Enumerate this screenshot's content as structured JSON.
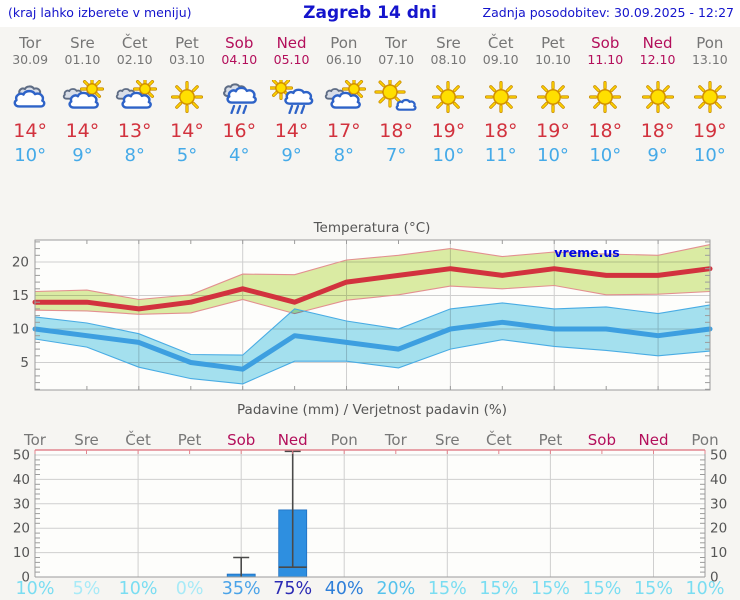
{
  "header": {
    "left_note": "(kraj lahko izberete v meniju)",
    "title": "Zagreb 14 dni",
    "updated": "Zadnja posodobitev: 30.09.2025 - 12:27"
  },
  "colors": {
    "header_blue": "#1414cc",
    "weekday_gray": "#757575",
    "weekend_crimson": "#b30f5b",
    "high_temp_red": "#d2323e",
    "low_temp_blue": "#45aae8",
    "max_band_fill": "#dceda6",
    "max_band_edge": "#e39090",
    "min_band_fill": "#a5e2f2",
    "min_band_edge": "#49ace4",
    "bar_blue": "#2e8fe0",
    "grid": "#cfcfcf",
    "frame": "#9c9c9c",
    "axis_text": "#555555",
    "precip_top_border_pink": "#e2858f"
  },
  "forecast_days": [
    {
      "day": "Tor",
      "date": "30.09",
      "weekend": false,
      "icon": "cloudy",
      "high": "14°",
      "low": "10°"
    },
    {
      "day": "Sre",
      "date": "01.10",
      "weekend": false,
      "icon": "sun-cloud",
      "high": "14°",
      "low": "9°"
    },
    {
      "day": "Čet",
      "date": "02.10",
      "weekend": false,
      "icon": "sun-cloud",
      "high": "13°",
      "low": "8°"
    },
    {
      "day": "Pet",
      "date": "03.10",
      "weekend": false,
      "icon": "sunny",
      "high": "14°",
      "low": "5°"
    },
    {
      "day": "Sob",
      "date": "04.10",
      "weekend": true,
      "icon": "rain",
      "high": "16°",
      "low": "4°"
    },
    {
      "day": "Ned",
      "date": "05.10",
      "weekend": true,
      "icon": "sun-rain",
      "high": "14°",
      "low": "9°"
    },
    {
      "day": "Pon",
      "date": "06.10",
      "weekend": false,
      "icon": "sun-cloud",
      "high": "17°",
      "low": "8°"
    },
    {
      "day": "Tor",
      "date": "07.10",
      "weekend": false,
      "icon": "mostly-sunny",
      "high": "18°",
      "low": "7°"
    },
    {
      "day": "Sre",
      "date": "08.10",
      "weekend": false,
      "icon": "sunny",
      "high": "19°",
      "low": "10°"
    },
    {
      "day": "Čet",
      "date": "09.10",
      "weekend": false,
      "icon": "sunny",
      "high": "18°",
      "low": "11°"
    },
    {
      "day": "Pet",
      "date": "10.10",
      "weekend": false,
      "icon": "sunny",
      "high": "19°",
      "low": "10°"
    },
    {
      "day": "Sob",
      "date": "11.10",
      "weekend": true,
      "icon": "sunny",
      "high": "18°",
      "low": "10°"
    },
    {
      "day": "Ned",
      "date": "12.10",
      "weekend": true,
      "icon": "sunny",
      "high": "18°",
      "low": "9°"
    },
    {
      "day": "Pon",
      "date": "13.10",
      "weekend": false,
      "icon": "sunny",
      "high": "19°",
      "low": "10°"
    }
  ],
  "chart_data": [
    {
      "type": "line",
      "title": "Temperatura (°C)",
      "watermark": "vreme.us",
      "categories": [
        "Tor 30.09",
        "Sre 01.10",
        "Čet 02.10",
        "Pet 03.10",
        "Sob 04.10",
        "Ned 05.10",
        "Pon 06.10",
        "Tor 07.10",
        "Sre 08.10",
        "Čet 09.10",
        "Pet 10.10",
        "Sob 11.10",
        "Ned 12.10",
        "Pon 13.10"
      ],
      "ylim": [
        1,
        23.2
      ],
      "yticks": [
        "5",
        "10",
        "15",
        "20"
      ],
      "grid": true,
      "legend": "none",
      "series": [
        {
          "name": "max temperature",
          "values": [
            14,
            14,
            13,
            14,
            16,
            14,
            17,
            18,
            19,
            18,
            19,
            18,
            18,
            19
          ],
          "band_upper": [
            15.6,
            15.8,
            14.4,
            15.1,
            18.2,
            18.1,
            20.3,
            21,
            22,
            20.8,
            21.5,
            21.2,
            21,
            22.6
          ],
          "band_lower": [
            12.8,
            12.7,
            12.2,
            12.4,
            14.4,
            12.3,
            14.3,
            15.1,
            16.4,
            16,
            16.5,
            15.1,
            15.2,
            15.6
          ]
        },
        {
          "name": "min temperature",
          "values": [
            10,
            9,
            8,
            5,
            4,
            9,
            8,
            7,
            10,
            11,
            10,
            10,
            9,
            10
          ],
          "band_upper": [
            11.8,
            10.9,
            9.3,
            6.2,
            6.1,
            13,
            11.2,
            10,
            13,
            13.9,
            13,
            13.3,
            12.3,
            13.6
          ],
          "band_lower": [
            8.5,
            7.3,
            4.3,
            2.6,
            1.8,
            5.2,
            5.2,
            4.2,
            7,
            8.4,
            7.4,
            6.8,
            6,
            6.7
          ]
        }
      ]
    },
    {
      "type": "bar",
      "title": "Padavine (mm) / Verjetnost padavin (%)",
      "categories": [
        "Tor",
        "Sre",
        "Čet",
        "Pet",
        "Sob",
        "Ned",
        "Pon",
        "Tor",
        "Sre",
        "Čet",
        "Pet",
        "Sob",
        "Ned",
        "Pon"
      ],
      "weekend_flags": [
        0,
        0,
        0,
        0,
        1,
        1,
        0,
        0,
        0,
        0,
        0,
        1,
        1,
        0
      ],
      "values": [
        0,
        0,
        0,
        0,
        1.2,
        27.5,
        0,
        0,
        0,
        0,
        0,
        0,
        0,
        0
      ],
      "whiskers": [
        {
          "index": 4,
          "low": 0,
          "high": 8
        },
        {
          "index": 5,
          "low": 4,
          "high": 51.5
        }
      ],
      "probabilities": [
        "10%",
        "5%",
        "10%",
        "0%",
        "35%",
        "75%",
        "40%",
        "20%",
        "15%",
        "15%",
        "15%",
        "15%",
        "15%",
        "10%"
      ],
      "probability_colors": [
        "#7addf2",
        "#a8eaf7",
        "#7addf2",
        "#a8eaf7",
        "#4ba3e8",
        "#2b2bb4",
        "#2e7fd9",
        "#55c2ec",
        "#7addf2",
        "#7addf2",
        "#7addf2",
        "#7addf2",
        "#7addf2",
        "#7addf2"
      ],
      "ylim": [
        0,
        50
      ],
      "yticks": [
        "0",
        "10",
        "20",
        "30",
        "40",
        "50"
      ],
      "grid": true,
      "legend": "none"
    }
  ]
}
